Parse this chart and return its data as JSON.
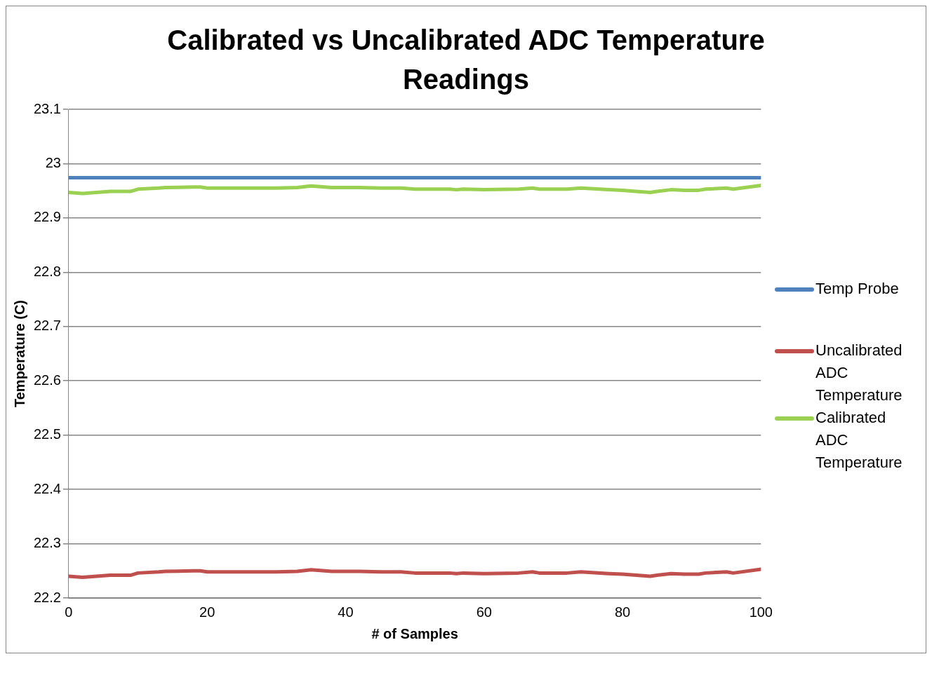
{
  "chart_data": {
    "type": "line",
    "title": "Calibrated vs Uncalibrated ADC Temperature Readings",
    "xlabel": "# of Samples",
    "ylabel": "Temperature (C)",
    "xlim": [
      0,
      100
    ],
    "xticks": [
      0,
      20,
      40,
      60,
      80,
      100
    ],
    "ylim": [
      22.2,
      23.1
    ],
    "yticks": [
      22.2,
      22.3,
      22.4,
      22.5,
      22.6,
      22.7,
      22.8,
      22.9,
      23,
      23.1
    ],
    "grid": "y",
    "legend": "right",
    "marker": "none",
    "line_style": "solid",
    "series": [
      {
        "name": "Temp Probe",
        "color": "#4f81bd",
        "x": [
          0,
          100
        ],
        "values": [
          22.974,
          22.974
        ]
      },
      {
        "name": "Uncalibrated ADC Temperature",
        "color": "#c0504d",
        "x": [
          0,
          2,
          4,
          5,
          6,
          9,
          10,
          13,
          14,
          18,
          19,
          20,
          24,
          30,
          33,
          35,
          38,
          42,
          45,
          48,
          50,
          55,
          56,
          57,
          60,
          65,
          67,
          68,
          72,
          74,
          78,
          80,
          84,
          85,
          87,
          89,
          91,
          92,
          95,
          96,
          100
        ],
        "values": [
          22.24,
          22.238,
          22.24,
          22.241,
          22.242,
          22.242,
          22.246,
          22.248,
          22.249,
          22.25,
          22.25,
          22.248,
          22.248,
          22.248,
          22.249,
          22.252,
          22.249,
          22.249,
          22.248,
          22.248,
          22.246,
          22.246,
          22.245,
          22.246,
          22.245,
          22.246,
          22.248,
          22.246,
          22.246,
          22.248,
          22.245,
          22.244,
          22.24,
          22.242,
          22.245,
          22.244,
          22.244,
          22.246,
          22.248,
          22.246,
          22.253
        ]
      },
      {
        "name": "Calibrated ADC Temperature",
        "color": "#9bd153",
        "x": [
          0,
          2,
          4,
          5,
          6,
          9,
          10,
          13,
          14,
          18,
          19,
          20,
          24,
          30,
          33,
          35,
          38,
          42,
          45,
          48,
          50,
          55,
          56,
          57,
          60,
          65,
          67,
          68,
          72,
          74,
          78,
          80,
          84,
          85,
          87,
          89,
          91,
          92,
          95,
          96,
          100
        ],
        "values": [
          22.947,
          22.945,
          22.947,
          22.948,
          22.949,
          22.949,
          22.953,
          22.955,
          22.956,
          22.957,
          22.957,
          22.955,
          22.955,
          22.955,
          22.956,
          22.959,
          22.956,
          22.956,
          22.955,
          22.955,
          22.953,
          22.953,
          22.952,
          22.953,
          22.952,
          22.953,
          22.955,
          22.953,
          22.953,
          22.955,
          22.952,
          22.951,
          22.947,
          22.949,
          22.952,
          22.951,
          22.951,
          22.953,
          22.955,
          22.953,
          22.96
        ]
      }
    ]
  }
}
